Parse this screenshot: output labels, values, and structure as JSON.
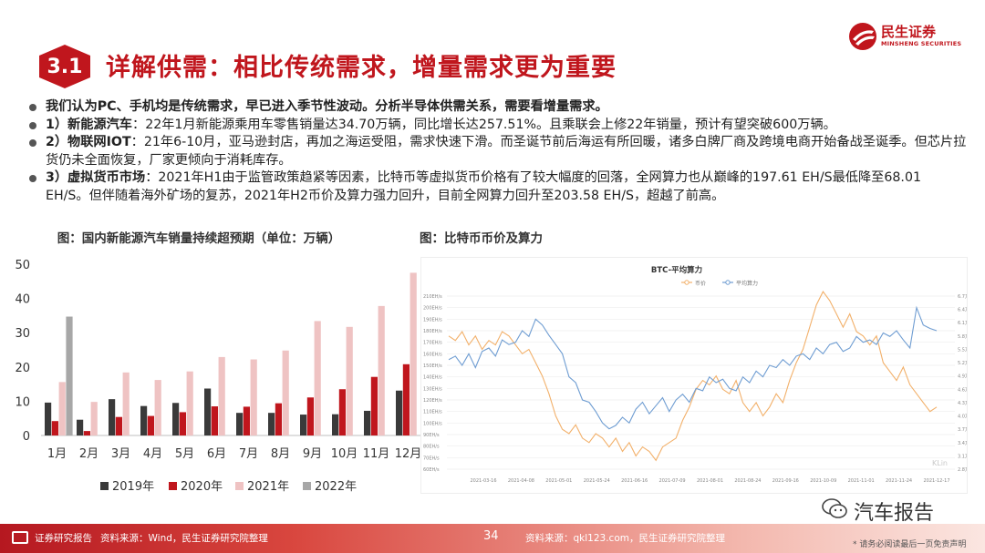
{
  "header": {
    "section_number": "3.1",
    "title": "详解供需：相比传统需求，增量需求更为重要",
    "logo_cn": "民生证券",
    "logo_en": "MINSHENG SECURITIES"
  },
  "bullets": [
    {
      "lead": "",
      "text": "我们认为PC、手机均是传统需求，早已进入季节性波动。分析半导体供需关系，需要看增量需求。",
      "bold_all": true
    },
    {
      "lead": "1）新能源汽车",
      "text": "：22年1月新能源乘用车零售销量达34.70万辆，同比增长达257.51%。且乘联会上修22年销量，预计有望突破600万辆。",
      "bold_all": false
    },
    {
      "lead": "2）物联网IOT",
      "text": "：21年6-10月，亚马逊封店，再加之海运受阻，需求快速下滑。而圣诞节前后海运有所回暖，诸多白牌厂商及跨境电商开始备战圣诞季。但芯片拉货仍未全面恢复，厂家更倾向于消耗库存。",
      "bold_all": false
    },
    {
      "lead": "3）虚拟货币市场",
      "text": "：2021年H1由于监管政策趋紧等因素，比特币等虚拟货币价格有了较大幅度的回落，全网算力也从巅峰的197.61 EH/S最低降至68.01 EH/S。但伴随着海外矿场的复苏，2021年H2币价及算力强力回升，目前全网算力回升至203.58 EH/S，超越了前高。",
      "bold_all": false
    }
  ],
  "captions": {
    "left": "图：国内新能源汽车销量持续超预期（单位：万辆）",
    "right": "图：比特币币价及算力"
  },
  "colors": {
    "brand": "#c0161d",
    "s2019": "#3a3a3a",
    "s2020": "#c0161d",
    "s2021": "#efc3c3",
    "s2022": "#a7a7a7",
    "btc_price": "#f2b06a",
    "btc_hash": "#6f9dd2"
  },
  "chart_data": [
    {
      "type": "bar",
      "title": "图：国内新能源汽车销量持续超预期（单位：万辆）",
      "categories": [
        "1月",
        "2月",
        "3月",
        "4月",
        "5月",
        "6月",
        "7月",
        "8月",
        "9月",
        "10月",
        "11月",
        "12月"
      ],
      "ylim": [
        0,
        50
      ],
      "yticks": [
        0,
        10,
        20,
        30,
        40,
        50
      ],
      "legend_position": "bottom",
      "series": [
        {
          "name": "2019年",
          "color_key": "s2019",
          "values": [
            9.6,
            4.6,
            10.6,
            8.6,
            9.5,
            13.7,
            6.6,
            6.6,
            6.1,
            6.2,
            7.2,
            13.1
          ]
        },
        {
          "name": "2020年",
          "color_key": "s2020",
          "values": [
            4.2,
            1.3,
            5.4,
            5.7,
            6.8,
            8.5,
            8.4,
            9.4,
            11.1,
            13.5,
            17.1,
            20.8
          ]
        },
        {
          "name": "2021年",
          "color_key": "s2021",
          "values": [
            15.6,
            9.8,
            18.4,
            16.2,
            18.7,
            22.9,
            22.2,
            24.8,
            33.4,
            31.7,
            37.8,
            47.5
          ]
        },
        {
          "name": "2022年",
          "color_key": "s2022",
          "values": [
            34.7,
            null,
            null,
            null,
            null,
            null,
            null,
            null,
            null,
            null,
            null,
            null
          ]
        }
      ]
    },
    {
      "type": "line",
      "title": "BTC-平均算力",
      "legend": [
        "币价",
        "平均算力"
      ],
      "legend_position": "top",
      "x_tick_labels": [
        "2021-03-16",
        "2021-04-08",
        "2021-05-01",
        "2021-05-24",
        "2021-06-16",
        "2021-07-09",
        "2021-08-01",
        "2021-08-24",
        "2021-09-16",
        "2021-10-09",
        "2021-11-01",
        "2021-11-24",
        "2021-12-17"
      ],
      "y_left_labels": [
        "210EH/s",
        "200EH/s",
        "190EH/s",
        "180EH/s",
        "170EH/s",
        "160EH/s",
        "150EH/s",
        "140EH/s",
        "130EH/s",
        "120EH/s",
        "110EH/s",
        "100EH/s",
        "90EH/s",
        "80EH/s",
        "70EH/s",
        "60EH/s"
      ],
      "y_right_labels": [
        "6.7万",
        "6.4万",
        "6.1万",
        "5.8万",
        "5.5万",
        "5.2万",
        "4.9万",
        "4.6万",
        "4.3万",
        "4.0万",
        "3.7万",
        "3.4万",
        "3.1万",
        "2.8万"
      ],
      "watermark": "KLin",
      "series": [
        {
          "name": "币价",
          "color_key": "btc_price",
          "values": [
            5.8,
            5.7,
            5.9,
            5.6,
            5.8,
            5.5,
            5.7,
            5.6,
            5.9,
            5.8,
            5.6,
            5.4,
            5.5,
            5.2,
            4.9,
            4.5,
            4.0,
            3.7,
            3.6,
            3.8,
            3.5,
            3.4,
            3.6,
            3.5,
            3.3,
            3.5,
            3.2,
            3.4,
            3.1,
            3.3,
            3.2,
            3.0,
            3.3,
            3.4,
            3.5,
            3.9,
            4.2,
            4.6,
            4.8,
            4.7,
            4.9,
            4.6,
            4.5,
            4.8,
            4.3,
            4.1,
            4.3,
            4.0,
            4.2,
            4.5,
            4.3,
            4.8,
            5.2,
            5.5,
            6.0,
            6.5,
            6.8,
            6.6,
            6.3,
            6.0,
            6.3,
            5.9,
            5.8,
            5.6,
            5.8,
            5.2,
            5.0,
            4.8,
            5.1,
            4.7,
            4.5,
            4.3,
            4.1,
            4.2
          ]
        },
        {
          "name": "平均算力",
          "color_key": "btc_hash",
          "values": [
            155,
            158,
            150,
            160,
            148,
            162,
            165,
            158,
            172,
            168,
            170,
            180,
            175,
            190,
            185,
            176,
            168,
            160,
            140,
            135,
            120,
            118,
            110,
            100,
            95,
            98,
            105,
            100,
            112,
            118,
            108,
            115,
            122,
            110,
            120,
            125,
            118,
            130,
            128,
            140,
            135,
            138,
            130,
            128,
            140,
            135,
            145,
            140,
            150,
            148,
            155,
            150,
            158,
            160,
            155,
            165,
            160,
            168,
            170,
            162,
            165,
            175,
            170,
            172,
            168,
            178,
            175,
            180,
            172,
            165,
            200,
            185,
            182,
            180
          ]
        }
      ]
    }
  ],
  "footer": {
    "left": "证券研究报告",
    "source_left": "资料来源：Wind，民生证券研究院整理",
    "page": "34",
    "source_right": "资料来源：qkl123.com，民生证券研究院整理",
    "disclaimer": "* 请务必阅读最后一页免责声明",
    "watermark": "汽车报告"
  }
}
